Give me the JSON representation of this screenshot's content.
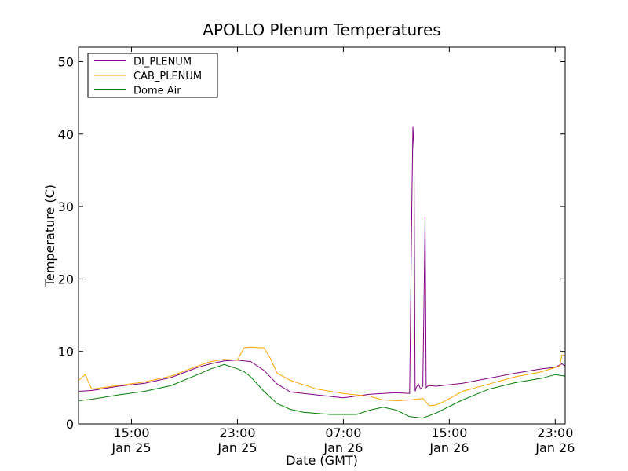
{
  "chart_data": {
    "type": "line",
    "title": "APOLLO Plenum Temperatures",
    "xlabel": "Date (GMT)",
    "ylabel": "Temperature (C)",
    "ylim": [
      0,
      52
    ],
    "xlim": [
      "Jan 25 11:00",
      "Jan 26 23:45"
    ],
    "grid": false,
    "legend_position": "top-left",
    "x_ticks": [
      {
        "x": "Jan 25 15:00",
        "line1": "15:00",
        "line2": "Jan 25"
      },
      {
        "x": "Jan 25 23:00",
        "line1": "23:00",
        "line2": "Jan 25"
      },
      {
        "x": "Jan 26 07:00",
        "line1": "07:00",
        "line2": "Jan 26"
      },
      {
        "x": "Jan 26 15:00",
        "line1": "15:00",
        "line2": "Jan 26"
      },
      {
        "x": "Jan 26 23:00",
        "line1": "23:00",
        "line2": "Jan 26"
      }
    ],
    "y_ticks": [
      0,
      10,
      20,
      30,
      40,
      50
    ],
    "series": [
      {
        "name": "DI_PLENUM",
        "color": "#800080",
        "x": [
          "Jan 25 11:00",
          "Jan 25 12:00",
          "Jan 25 14:00",
          "Jan 25 16:00",
          "Jan 25 18:00",
          "Jan 25 20:00",
          "Jan 25 21:00",
          "Jan 25 22:00",
          "Jan 25 23:00",
          "Jan 26 00:00",
          "Jan 26 01:00",
          "Jan 26 02:00",
          "Jan 26 03:00",
          "Jan 26 05:00",
          "Jan 26 07:00",
          "Jan 26 09:00",
          "Jan 26 11:00",
          "Jan 26 12:00",
          "Jan 26 12:10",
          "Jan 26 12:15",
          "Jan 26 12:20",
          "Jan 26 12:25",
          "Jan 26 12:30",
          "Jan 26 12:40",
          "Jan 26 12:50",
          "Jan 26 13:00",
          "Jan 26 13:05",
          "Jan 26 13:10",
          "Jan 26 13:15",
          "Jan 26 13:25",
          "Jan 26 14:00",
          "Jan 26 16:00",
          "Jan 26 18:00",
          "Jan 26 20:00",
          "Jan 26 22:00",
          "Jan 26 23:00",
          "Jan 26 23:30",
          "Jan 26 23:45"
        ],
        "y": [
          4.5,
          4.6,
          5.2,
          5.6,
          6.4,
          7.8,
          8.3,
          8.7,
          8.8,
          8.6,
          7.4,
          5.5,
          4.4,
          4.0,
          3.6,
          4.1,
          4.3,
          4.2,
          30.0,
          41.0,
          38.0,
          4.5,
          5.0,
          5.5,
          4.8,
          5.2,
          16.0,
          28.5,
          5.0,
          5.3,
          5.2,
          5.6,
          6.3,
          7.0,
          7.6,
          7.8,
          8.3,
          8.0
        ]
      },
      {
        "name": "CAB_PLENUM",
        "color": "#FFA500",
        "x": [
          "Jan 25 11:00",
          "Jan 25 11:30",
          "Jan 25 12:00",
          "Jan 25 14:00",
          "Jan 25 16:00",
          "Jan 25 18:00",
          "Jan 25 20:00",
          "Jan 25 21:00",
          "Jan 25 22:00",
          "Jan 25 23:00",
          "Jan 25 23:30",
          "Jan 26 00:00",
          "Jan 26 01:00",
          "Jan 26 01:30",
          "Jan 26 02:00",
          "Jan 26 03:00",
          "Jan 26 05:00",
          "Jan 26 07:00",
          "Jan 26 09:00",
          "Jan 26 10:00",
          "Jan 26 11:00",
          "Jan 26 12:00",
          "Jan 26 12:30",
          "Jan 26 13:00",
          "Jan 26 13:30",
          "Jan 26 14:00",
          "Jan 26 14:30",
          "Jan 26 15:00",
          "Jan 26 16:00",
          "Jan 26 18:00",
          "Jan 26 20:00",
          "Jan 26 22:00",
          "Jan 26 23:00",
          "Jan 26 23:20",
          "Jan 26 23:30",
          "Jan 26 23:45"
        ],
        "y": [
          6.0,
          6.8,
          4.8,
          5.3,
          5.8,
          6.6,
          8.0,
          8.6,
          8.9,
          8.8,
          10.5,
          10.6,
          10.5,
          9.0,
          7.0,
          6.0,
          4.8,
          4.2,
          3.8,
          3.3,
          3.2,
          3.3,
          3.4,
          3.5,
          2.5,
          2.6,
          3.0,
          3.5,
          4.5,
          5.5,
          6.5,
          7.2,
          7.8,
          8.0,
          9.5,
          9.4
        ]
      },
      {
        "name": "Dome Air",
        "color": "#008000",
        "x": [
          "Jan 25 11:00",
          "Jan 25 12:00",
          "Jan 25 14:00",
          "Jan 25 16:00",
          "Jan 25 18:00",
          "Jan 25 20:00",
          "Jan 25 21:00",
          "Jan 25 22:00",
          "Jan 25 23:00",
          "Jan 25 23:30",
          "Jan 26 00:00",
          "Jan 26 01:00",
          "Jan 26 02:00",
          "Jan 26 03:00",
          "Jan 26 04:00",
          "Jan 26 06:00",
          "Jan 26 08:00",
          "Jan 26 09:00",
          "Jan 26 10:00",
          "Jan 26 11:00",
          "Jan 26 12:00",
          "Jan 26 13:00",
          "Jan 26 14:00",
          "Jan 26 16:00",
          "Jan 26 18:00",
          "Jan 26 20:00",
          "Jan 26 22:00",
          "Jan 26 23:00",
          "Jan 26 23:45"
        ],
        "y": [
          3.2,
          3.4,
          4.0,
          4.5,
          5.3,
          6.8,
          7.6,
          8.2,
          7.6,
          7.2,
          6.5,
          4.5,
          2.8,
          2.0,
          1.6,
          1.3,
          1.3,
          1.9,
          2.3,
          1.9,
          1.0,
          0.8,
          1.5,
          3.3,
          4.8,
          5.7,
          6.3,
          6.8,
          6.6
        ]
      }
    ]
  }
}
